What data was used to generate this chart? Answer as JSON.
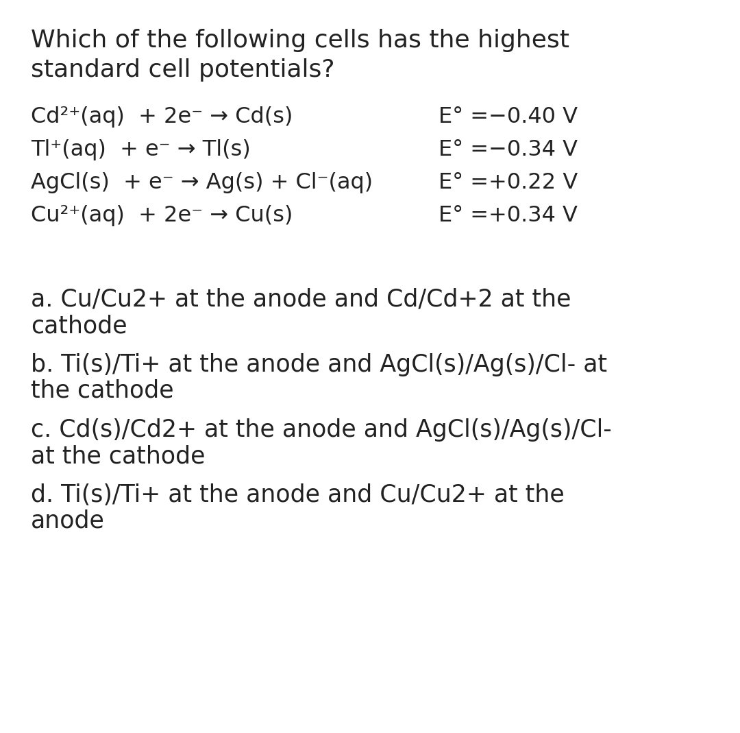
{
  "background_color": "#ffffff",
  "text_color": "#222222",
  "title_line1": "Which of the following cells has the highest",
  "title_line2": "standard cell potentials?",
  "eq1_left": "Cd²⁺(aq)  + 2e⁻ → Cd(s)",
  "eq1_right": "E° =−0.40 V",
  "eq2_left": "Tl⁺(aq)  + e⁻ → Tl(s)",
  "eq2_right": "E° =−0.34 V",
  "eq3_left": "AgCl(s)  + e⁻ → Ag(s) + Cl⁻(aq)",
  "eq3_right": "E° =+0.22 V",
  "eq4_left": "Cu²⁺(aq)  + 2e⁻ → Cu(s)",
  "eq4_right": "E° =+0.34 V",
  "opt_a1": "a. Cu/Cu2+ at the anode and Cd/Cd+2 at the",
  "opt_a2": "cathode",
  "opt_b1": "b. Ti(s)/Ti+ at the anode and AgCl(s)/Ag(s)/Cl- at",
  "opt_b2": "the cathode",
  "opt_c1": "c. Cd(s)/Cd2+ at the anode and AgCl(s)/Ag(s)/Cl-",
  "opt_c2": "at the cathode",
  "opt_d1": "d. Ti(s)/Ti+ at the anode and Cu/Cu2+ at the",
  "opt_d2": "anode",
  "fs_title": 26,
  "fs_eq": 23,
  "fs_opt": 25
}
